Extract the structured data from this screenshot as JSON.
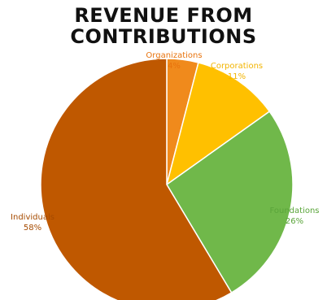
{
  "chart_data": {
    "type": "pie",
    "title_lines": [
      "REVENUE FROM",
      "CONTRIBUTIONS"
    ],
    "slices": [
      {
        "label": "Organizations",
        "percent_label": "4%",
        "value": 4,
        "color": "#f08a1c"
      },
      {
        "label": "Corporations",
        "percent_label": "11%",
        "value": 11,
        "color": "#ffc000"
      },
      {
        "label": "Foundations",
        "percent_label": "26%",
        "value": 26,
        "color": "#70b84a"
      },
      {
        "label": "Individuals",
        "percent_label": "58%",
        "value": 58,
        "color": "#bf5800"
      }
    ],
    "label_colors": {
      "Organizations": "#e8730d",
      "Corporations": "#f2b400",
      "Foundations": "#5aa53a",
      "Individuals": "#a64b00"
    },
    "start_angle_deg": 0,
    "direction": "clockwise"
  }
}
